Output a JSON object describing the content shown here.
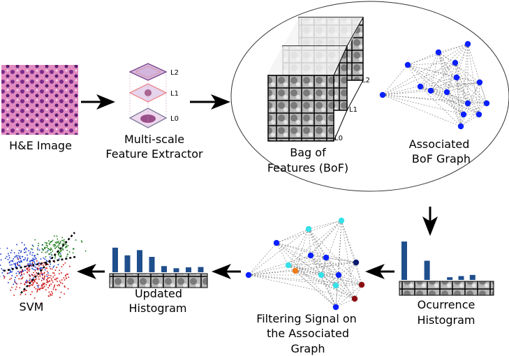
{
  "labels": {
    "he_image": "H&E Image",
    "extractor_line1": "Multi-scale",
    "extractor_line2": "Feature Extractor",
    "levels": [
      "L2",
      "L1",
      "L0"
    ],
    "bof_line1": "Bag of",
    "bof_line2": "Features (BoF)",
    "graph_line1": "Associated",
    "graph_line2": "BoF Graph",
    "occ_line1": "Ocurrence",
    "occ_line2": "Histogram",
    "filter_line1": "Filtering Signal on",
    "filter_line2": "the Associated",
    "filter_line3": "Graph",
    "upd_line1": "Updated",
    "upd_line2": "Histogram",
    "svm": "SVM"
  },
  "occurrence_histogram": {
    "values": [
      1.0,
      0,
      0.5,
      0,
      0.07,
      0.1,
      0.13
    ]
  },
  "updated_histogram": {
    "values": [
      0.8,
      0.55,
      0.72,
      0.5,
      0.2,
      0.13,
      0.16,
      0.17
    ]
  },
  "colors": {
    "bar": "#1f4e8c",
    "node": "#0a1fff",
    "edge": "#777777",
    "cyan": "#36e0e8",
    "orange": "#f07a16",
    "darkred": "#8b0f12",
    "navy": "#0a1a6e",
    "svm_blue": "#1030c8",
    "svm_red": "#d01010",
    "svm_green": "#1a7a1a"
  }
}
